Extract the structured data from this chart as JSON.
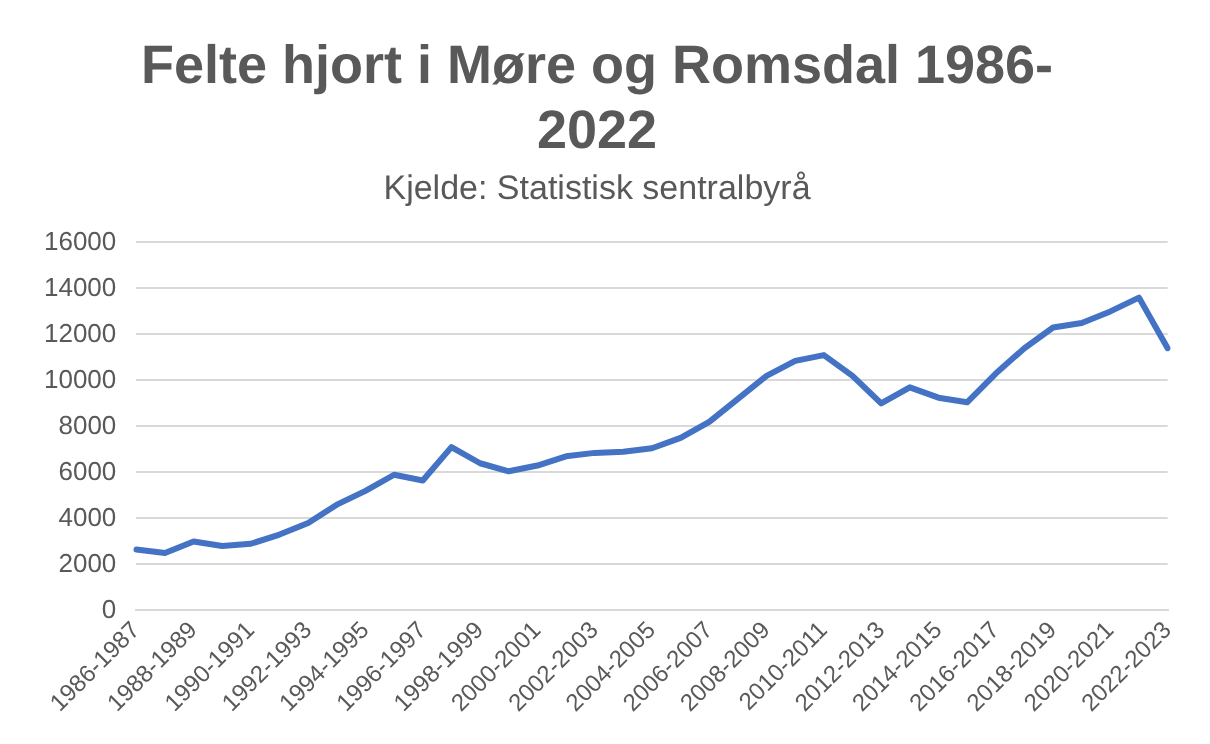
{
  "chart_data": {
    "type": "line",
    "title": "Felte hjort i Møre og Romsdal 1986-2022",
    "subtitle": "Kjelde: Statistisk sentralbyrå",
    "categories": [
      "1986-1987",
      null,
      "1988-1989",
      null,
      "1990-1991",
      null,
      "1992-1993",
      null,
      "1994-1995",
      null,
      "1996-1997",
      null,
      "1998-1999",
      null,
      "2000-2001",
      null,
      "2002-2003",
      null,
      "2004-2005",
      null,
      "2006-2007",
      null,
      "2008-2009",
      null,
      "2010-2011",
      null,
      "2012-2013",
      null,
      "2014-2015",
      null,
      "2016-2017",
      null,
      "2018-2019",
      null,
      "2020-2021",
      null,
      "2022-2023"
    ],
    "series": [
      {
        "color": "#4472c4",
        "values": [
          2650,
          2500,
          3000,
          2800,
          2900,
          3300,
          3800,
          4600,
          5200,
          5900,
          5650,
          7100,
          6400,
          6050,
          6300,
          6700,
          6850,
          6900,
          7050,
          7500,
          8200,
          9200,
          10200,
          10850,
          11100,
          10200,
          9000,
          9700,
          9250,
          9050,
          10300,
          11400,
          12300,
          12500,
          13000,
          13600,
          11400
        ]
      }
    ],
    "ylim": [
      0,
      16000
    ],
    "yticks": [
      0,
      2000,
      4000,
      6000,
      8000,
      10000,
      12000,
      14000,
      16000
    ],
    "grid": "y",
    "legend": false,
    "marker": "none",
    "line_style": "solid"
  }
}
